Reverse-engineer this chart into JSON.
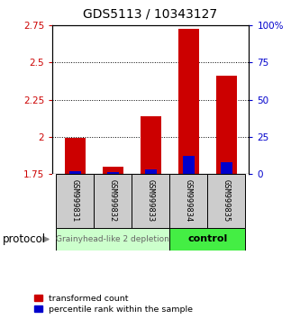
{
  "title": "GDS5113 / 10343127",
  "samples": [
    "GSM999831",
    "GSM999832",
    "GSM999833",
    "GSM999834",
    "GSM999835"
  ],
  "red_values": [
    1.99,
    1.8,
    2.14,
    2.73,
    2.41
  ],
  "blue_pct": [
    2,
    1,
    3,
    12,
    8
  ],
  "ylim_left": [
    1.75,
    2.75
  ],
  "yticks_left": [
    1.75,
    2.0,
    2.25,
    2.5,
    2.75
  ],
  "ytick_labels_left": [
    "1.75",
    "2",
    "2.25",
    "2.5",
    "2.75"
  ],
  "ylim_right": [
    0,
    100
  ],
  "yticks_right": [
    0,
    25,
    50,
    75,
    100
  ],
  "ytick_labels_right": [
    "0",
    "25",
    "50",
    "75",
    "100%"
  ],
  "bar_bottom": 1.75,
  "bar_width": 0.55,
  "group1_label": "Grainyhead-like 2 depletion",
  "group2_label": "control",
  "group1_color": "#ccffcc",
  "group2_color": "#44ee44",
  "protocol_label": "protocol",
  "legend_red_label": "transformed count",
  "legend_blue_label": "percentile rank within the sample",
  "bar_color_red": "#cc0000",
  "bar_color_blue": "#0000cc",
  "title_fontsize": 10,
  "axis_color_left": "#cc0000",
  "axis_color_right": "#0000cc",
  "grid_yticks": [
    2.0,
    2.25,
    2.5
  ],
  "pct_scale_factor": 0.001
}
